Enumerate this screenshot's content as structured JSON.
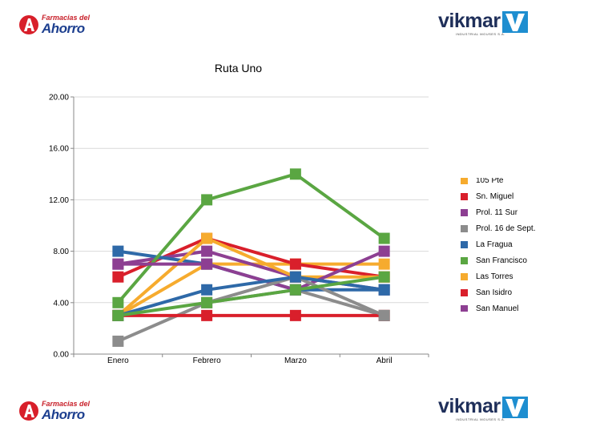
{
  "logos": {
    "farmacias": {
      "line1": "Farmacias del",
      "line2": "Ahorro"
    },
    "vikmar": {
      "word": "vikmar",
      "tagline": "INDUSTRIAL MOUSES S.A."
    }
  },
  "chart_data": {
    "type": "line",
    "title": "Ruta Uno",
    "categories": [
      "Enero",
      "Febrero",
      "Marzo",
      "Abril"
    ],
    "ylim": [
      0,
      20
    ],
    "yticks": [
      "0.00",
      "4.00",
      "8.00",
      "12.00",
      "16.00",
      "20.00"
    ],
    "grid": true,
    "legend_position": "right",
    "series": [
      {
        "name": "105 Pte",
        "color": "#f6ab2e",
        "values": [
          3,
          7,
          7,
          7
        ]
      },
      {
        "name": "Sn. Miguel",
        "color": "#d91f2b",
        "values": [
          6,
          9,
          7,
          6
        ]
      },
      {
        "name": "Prol. 11 Sur",
        "color": "#8d3f92",
        "values": [
          7,
          8,
          6,
          5
        ]
      },
      {
        "name": "Prol. 16 de Sept.",
        "color": "#8c8c8c",
        "values": [
          1,
          4,
          5,
          3
        ]
      },
      {
        "name": "La Fragua",
        "color": "#2e69a8",
        "values": [
          8,
          7,
          5,
          5
        ]
      },
      {
        "name": "San Francisco",
        "color": "#5aa642",
        "values": [
          4,
          12,
          14,
          9
        ]
      },
      {
        "name": "Las Torres",
        "color": "#f6ab2e",
        "values": [
          3,
          9,
          6,
          6
        ]
      },
      {
        "name": "San Isidro",
        "color": "#d91f2b",
        "values": [
          3,
          3,
          3,
          3
        ]
      },
      {
        "name": "San Manuel",
        "color": "#8d3f92",
        "values": [
          7,
          7,
          5,
          8
        ]
      },
      {
        "name": "",
        "color": "#8c8c8c",
        "values": [
          null,
          4,
          6,
          3
        ]
      },
      {
        "name": "",
        "color": "#2e69a8",
        "values": [
          3,
          5,
          6,
          5
        ]
      },
      {
        "name": "",
        "color": "#5aa642",
        "values": [
          3,
          4,
          5,
          6
        ]
      }
    ]
  }
}
